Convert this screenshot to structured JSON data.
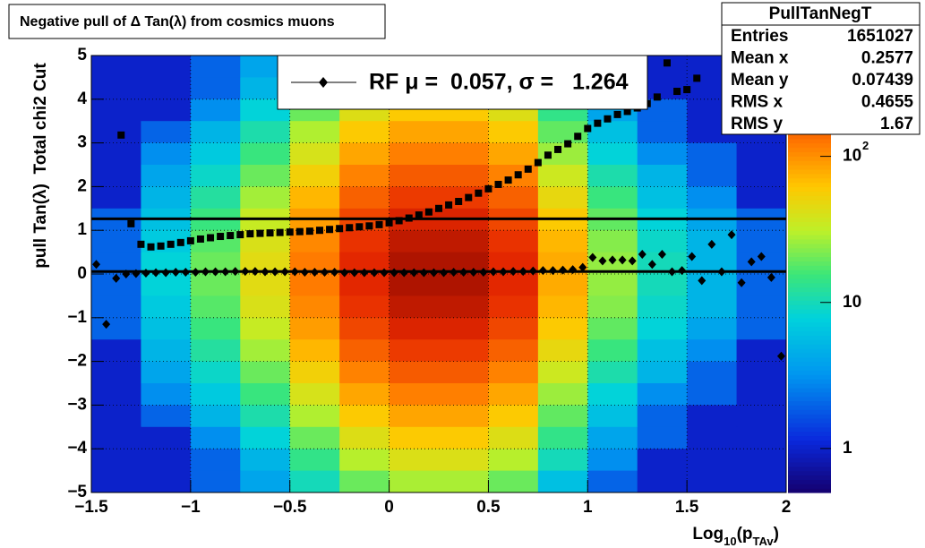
{
  "chart_data": {
    "type": "heatmap_profile",
    "title": "Negative pull of Δ Tan(λ) from cosmics muons",
    "y_label": "pull Tan(λ)  Total chi2 Cut",
    "x_label": [
      "Log",
      "10",
      "(p",
      "TAv",
      ")"
    ],
    "xlim": [
      -1.5,
      2
    ],
    "ylim": [
      -5,
      5
    ],
    "zlim": [
      0.5,
      490
    ],
    "log_z": true,
    "grid": true,
    "xticks": [
      {
        "value": -1.5,
        "label": "−1.5"
      },
      {
        "value": -1,
        "label": "−1"
      },
      {
        "value": -0.5,
        "label": "−0.5"
      },
      0,
      0.5,
      1,
      1.5,
      2
    ],
    "yticks": [
      {
        "value": -5,
        "label": "−5"
      },
      {
        "value": -4,
        "label": "−4"
      },
      {
        "value": -3,
        "label": "−3"
      },
      {
        "value": -2,
        "label": "−2"
      },
      {
        "value": -1,
        "label": "−1"
      },
      0,
      1,
      2,
      3,
      4,
      5
    ],
    "zticks": [
      1,
      10,
      {
        "value": 100,
        "label": "10",
        "exponent": "2"
      }
    ],
    "x_bins": [
      -1.5,
      -1.25,
      -1,
      -0.75,
      -0.5,
      -0.25,
      0,
      0.25,
      0.5,
      0.75,
      1,
      1.25,
      1.5,
      1.75,
      2
    ],
    "y_bins": [
      5,
      4.5,
      4,
      3.5,
      3,
      2.5,
      2,
      1.5,
      1,
      0.5,
      0,
      -0.5,
      -1,
      -1.5,
      -2,
      -2.5,
      -3,
      -3.5,
      -4,
      -4.5,
      -5
    ],
    "z": [
      [
        1,
        1,
        2,
        4,
        10,
        20,
        28,
        28,
        20,
        6,
        2,
        1,
        1,
        1
      ],
      [
        1,
        1,
        2,
        5,
        14,
        30,
        42,
        42,
        30,
        10,
        3,
        1,
        1,
        1
      ],
      [
        1,
        1,
        3,
        8,
        20,
        43,
        60,
        60,
        43,
        14,
        4,
        2,
        1,
        1
      ],
      [
        1,
        2,
        5,
        11,
        29,
        60,
        84,
        84,
        60,
        19,
        6,
        2,
        1,
        1
      ],
      [
        1,
        3,
        7,
        15,
        40,
        83,
        116,
        116,
        83,
        26,
        8,
        3,
        2,
        1
      ],
      [
        1,
        4,
        9,
        20,
        54,
        113,
        158,
        158,
        113,
        36,
        11,
        5,
        2,
        1
      ],
      [
        1,
        5,
        12,
        27,
        72,
        150,
        210,
        210,
        150,
        48,
        15,
        6,
        3,
        1
      ],
      [
        2,
        6,
        15,
        34,
        90,
        188,
        263,
        263,
        188,
        60,
        19,
        8,
        4,
        2
      ],
      [
        2,
        7,
        18,
        41,
        108,
        225,
        315,
        315,
        225,
        72,
        23,
        9,
        5,
        2
      ],
      [
        2,
        8,
        20,
        45,
        120,
        250,
        350,
        350,
        250,
        80,
        25,
        10,
        5,
        2
      ],
      [
        2,
        8,
        20,
        45,
        120,
        250,
        350,
        350,
        250,
        80,
        25,
        10,
        5,
        2
      ],
      [
        2,
        7,
        18,
        41,
        108,
        225,
        315,
        315,
        225,
        72,
        23,
        9,
        5,
        2
      ],
      [
        2,
        6,
        15,
        34,
        90,
        188,
        263,
        263,
        188,
        60,
        19,
        8,
        4,
        2
      ],
      [
        1,
        5,
        12,
        27,
        72,
        150,
        210,
        210,
        150,
        48,
        15,
        6,
        3,
        1
      ],
      [
        1,
        4,
        9,
        20,
        54,
        113,
        158,
        158,
        113,
        36,
        11,
        5,
        2,
        1
      ],
      [
        1,
        3,
        7,
        15,
        40,
        83,
        116,
        116,
        83,
        26,
        8,
        3,
        2,
        1
      ],
      [
        1,
        2,
        5,
        11,
        29,
        60,
        84,
        84,
        60,
        19,
        6,
        2,
        1,
        1
      ],
      [
        1,
        1,
        3,
        8,
        20,
        43,
        60,
        60,
        43,
        14,
        4,
        2,
        1,
        1
      ],
      [
        1,
        1,
        2,
        5,
        14,
        30,
        42,
        42,
        30,
        10,
        3,
        1,
        1,
        1
      ],
      [
        1,
        1,
        2,
        4,
        10,
        20,
        28,
        28,
        20,
        6,
        2,
        1,
        1,
        1
      ]
    ],
    "series": [
      {
        "marker": "square",
        "color": "#000000",
        "x": [
          -1.35,
          -1.3,
          -1.25,
          -1.2,
          -1.15,
          -1.1,
          -1.05,
          -1,
          -0.95,
          -0.9,
          -0.85,
          -0.8,
          -0.75,
          -0.7,
          -0.65,
          -0.6,
          -0.55,
          -0.5,
          -0.45,
          -0.4,
          -0.35,
          -0.3,
          -0.25,
          -0.2,
          -0.15,
          -0.1,
          -0.05,
          0,
          0.05,
          0.1,
          0.15,
          0.2,
          0.25,
          0.3,
          0.35,
          0.4,
          0.45,
          0.5,
          0.55,
          0.6,
          0.65,
          0.7,
          0.75,
          0.8,
          0.85,
          0.9,
          0.95,
          1,
          1.05,
          1.1,
          1.15,
          1.2,
          1.25,
          1.3,
          1.35,
          1.4,
          1.45,
          1.5,
          1.55
        ],
        "values": [
          3.18,
          1.15,
          0.68,
          0.62,
          0.64,
          0.68,
          0.72,
          0.76,
          0.8,
          0.83,
          0.86,
          0.88,
          0.9,
          0.92,
          0.93,
          0.94,
          0.95,
          0.96,
          0.97,
          0.98,
          1,
          1.02,
          1.04,
          1.06,
          1.08,
          1.1,
          1.13,
          1.17,
          1.22,
          1.28,
          1.35,
          1.42,
          1.5,
          1.58,
          1.66,
          1.75,
          1.85,
          1.95,
          2.05,
          2.15,
          2.27,
          2.4,
          2.55,
          2.72,
          2.85,
          2.98,
          3.15,
          3.33,
          3.45,
          3.55,
          3.65,
          3.72,
          3.8,
          3.9,
          4.05,
          4.83,
          4.18,
          4.22,
          4.48
        ]
      },
      {
        "marker": "diamond",
        "color": "#000000",
        "x": [
          -1.475,
          -1.425,
          -1.375,
          -1.325,
          -1.275,
          -1.225,
          -1.175,
          -1.125,
          -1.075,
          -1.025,
          -0.975,
          -0.925,
          -0.875,
          -0.825,
          -0.775,
          -0.725,
          -0.675,
          -0.625,
          -0.575,
          -0.525,
          -0.475,
          -0.425,
          -0.375,
          -0.325,
          -0.275,
          -0.225,
          -0.175,
          -0.125,
          -0.075,
          -0.025,
          0.025,
          0.075,
          0.125,
          0.175,
          0.225,
          0.275,
          0.325,
          0.375,
          0.425,
          0.475,
          0.525,
          0.575,
          0.625,
          0.675,
          0.725,
          0.775,
          0.825,
          0.875,
          0.925,
          0.975,
          1.025,
          1.075,
          1.125,
          1.175,
          1.225,
          1.275,
          1.325,
          1.375,
          1.425,
          1.475,
          1.525,
          1.575,
          1.625,
          1.675,
          1.725,
          1.775,
          1.825,
          1.875,
          1.925,
          1.975
        ],
        "values": [
          0.22,
          -1.15,
          -0.1,
          0,
          0.01,
          0.02,
          0.03,
          0.03,
          0.04,
          0.04,
          0.04,
          0.05,
          0.05,
          0.05,
          0.06,
          0.06,
          0.06,
          0.05,
          0.05,
          0.05,
          0.05,
          0.04,
          0.04,
          0.04,
          0.04,
          0.03,
          0.03,
          0.03,
          0.03,
          0.03,
          0.03,
          0.03,
          0.03,
          0.03,
          0.03,
          0.03,
          0.04,
          0.04,
          0.04,
          0.04,
          0.05,
          0.05,
          0.06,
          0.06,
          0.07,
          0.08,
          0.08,
          0.09,
          0.1,
          0.15,
          0.38,
          0.3,
          0.32,
          0.32,
          0.3,
          0.45,
          0.22,
          0.45,
          0.05,
          0.08,
          0.4,
          -0.15,
          0.68,
          0.05,
          0.9,
          -0.2,
          0.28,
          0.4,
          -0.08,
          -1.88
        ]
      }
    ],
    "fit_lines": [
      0.057,
      1.264
    ],
    "legend": {
      "label": "RF μ =  0.057, σ =   1.264",
      "prefix": "RF"
    },
    "stats": {
      "title": "PullTanNegT",
      "rows": [
        {
          "name": "Entries",
          "value": 1651027
        },
        {
          "name": "Mean x",
          "value": 0.2577
        },
        {
          "name": "Mean y",
          "value": 0.07439
        },
        {
          "name": "RMS x",
          "value": 0.4655
        },
        {
          "name": "RMS y",
          "value": 1.67
        }
      ]
    }
  }
}
